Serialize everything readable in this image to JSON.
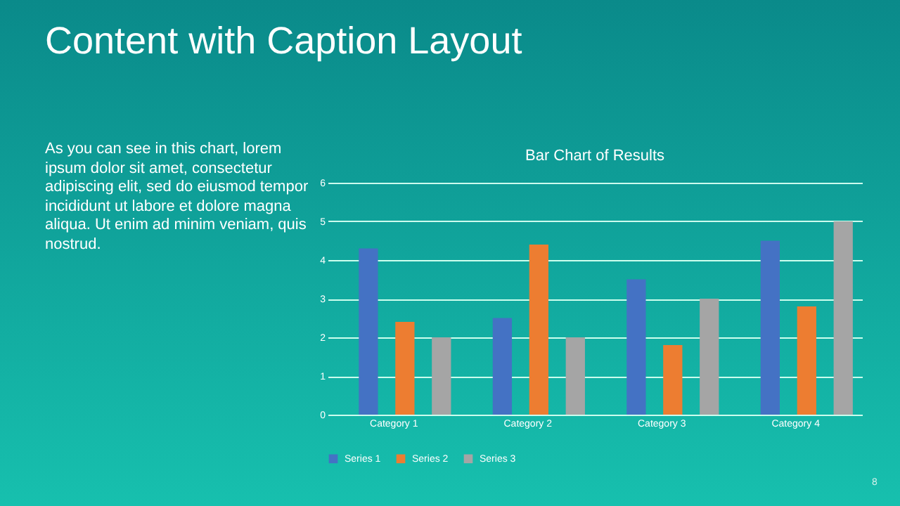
{
  "chart_data": {
    "type": "bar",
    "title": "Content with Caption Layout",
    "subtitle": "Bar Chart of Results",
    "annotations": [
      "As you can see in this chart, lorem ipsum dolor sit amet, consectetur adipiscing elit, sed do eiusmod tempor incididunt ut labore et dolore magna aliqua. Ut enim ad minim veniam, quis nostrud.",
      "8"
    ],
    "categories": [
      "Category 1",
      "Category 2",
      "Category 3",
      "Category 4"
    ],
    "series": [
      {
        "name": "Series 1",
        "color": "#4472c4",
        "values": [
          4.3,
          2.5,
          3.5,
          4.5
        ]
      },
      {
        "name": "Series 2",
        "color": "#ed7d31",
        "values": [
          2.4,
          4.4,
          1.8,
          2.8
        ]
      },
      {
        "name": "Series 3",
        "color": "#a5a5a5",
        "values": [
          2,
          2,
          3,
          5
        ]
      }
    ],
    "ylim": [
      0,
      6
    ],
    "yticks": [
      0,
      1,
      2,
      3,
      4,
      5,
      6
    ],
    "grid": "y",
    "legend": "bottom"
  }
}
